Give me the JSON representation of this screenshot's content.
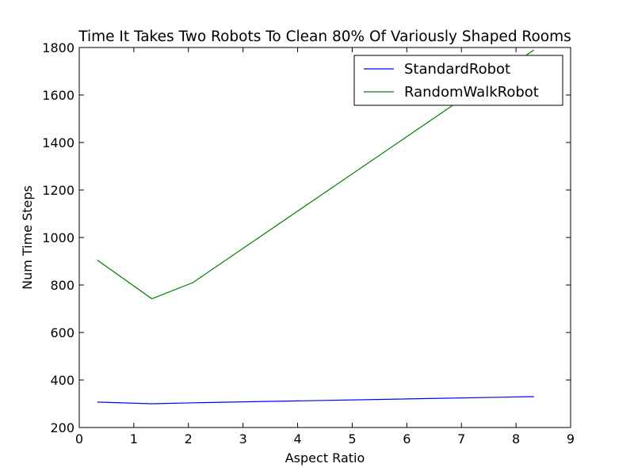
{
  "chart_data": {
    "type": "line",
    "title": "Time It Takes Two Robots To Clean 80% Of Variously Shaped Rooms",
    "xlabel": "Aspect Ratio",
    "ylabel": "Num Time Steps",
    "xlim": [
      0,
      9
    ],
    "ylim": [
      200,
      1800
    ],
    "xticks": [
      "0",
      "1",
      "2",
      "3",
      "4",
      "5",
      "6",
      "7",
      "8",
      "9"
    ],
    "yticks": [
      "200",
      "400",
      "600",
      "800",
      "1000",
      "1200",
      "1400",
      "1600",
      "1800"
    ],
    "legend_position": "top-right",
    "series": [
      {
        "name": "StandardRobot",
        "color": "#0000ff",
        "x": [
          0.33,
          1.33,
          2.08,
          8.33
        ],
        "y": [
          307,
          300,
          304,
          330
        ]
      },
      {
        "name": "RandomWalkRobot",
        "color": "#008000",
        "x": [
          0.33,
          1.33,
          2.08,
          8.33
        ],
        "y": [
          905,
          742,
          810,
          1790
        ]
      }
    ]
  }
}
